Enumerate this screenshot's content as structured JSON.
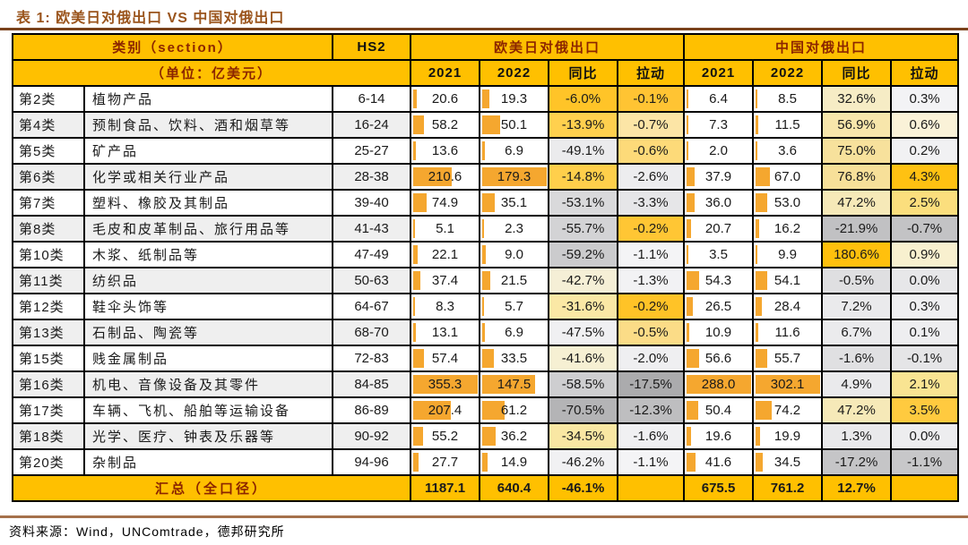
{
  "title": "表 1: 欧美日对俄出口 VS 中国对俄出口",
  "source": "资料来源：Wind，UNComtrade，德邦研究所",
  "header": {
    "section": "类别（section）",
    "unit": "（单位：亿美元）",
    "hs2": "HS2",
    "group_west": "欧美日对俄出口",
    "group_china": "中国对俄出口",
    "sub_2021": "2021",
    "sub_2022": "2022",
    "sub_yoy": "同比",
    "sub_pull": "拉动"
  },
  "colors": {
    "header_bg": "#FFC000",
    "header_text_red": "#8B2500",
    "header_text_dark": "#111111",
    "data_bar": "#F5A72F",
    "band_row": "#EFEFEF",
    "rule_top": "#7A421C",
    "rule_bottom": "#A5714B",
    "title_text": "#9A541C",
    "grid_line": "#000000"
  },
  "maxima": {
    "west_2021": 355.3,
    "west_2022": 179.3,
    "china_2021": 288.0,
    "china_2022": 302.1
  },
  "rows": [
    {
      "cat": "第2类",
      "name": "植物产品",
      "hs2": "6-14",
      "west": {
        "v2021": 20.6,
        "v2022": 19.3,
        "yoy": "-6.0%",
        "pull": "-0.1%",
        "yoy_bg": "#FFC428",
        "pull_bg": "#FFC433"
      },
      "china": {
        "v2021": 6.4,
        "v2022": 8.5,
        "yoy": "32.6%",
        "pull": "0.3%",
        "yoy_bg": "#F6ECC5",
        "pull_bg": "#F3F3F5"
      }
    },
    {
      "cat": "第4类",
      "name": "预制食品、饮料、酒和烟草等",
      "hs2": "16-24",
      "west": {
        "v2021": 58.2,
        "v2022": 50.1,
        "yoy": "-13.9%",
        "pull": "-0.7%",
        "yoy_bg": "#FFD04E",
        "pull_bg": "#FCE5A6"
      },
      "china": {
        "v2021": 7.3,
        "v2022": 11.5,
        "yoy": "56.9%",
        "pull": "0.6%",
        "yoy_bg": "#F7E6AB",
        "pull_bg": "#FAF2D8"
      }
    },
    {
      "cat": "第5类",
      "name": "矿产品",
      "hs2": "25-27",
      "west": {
        "v2021": 13.6,
        "v2022": 6.9,
        "yoy": "-49.1%",
        "pull": "-0.6%",
        "yoy_bg": "#EBEBED",
        "pull_bg": "#FDDA79"
      },
      "china": {
        "v2021": 2.0,
        "v2022": 3.6,
        "yoy": "75.0%",
        "pull": "0.2%",
        "yoy_bg": "#F7E19C",
        "pull_bg": "#F1F1F3"
      }
    },
    {
      "cat": "第6类",
      "name": "化学或相关行业产品",
      "hs2": "28-38",
      "west": {
        "v2021": 210.6,
        "v2022": 179.3,
        "yoy": "-14.8%",
        "pull": "-2.6%",
        "yoy_bg": "#FFCF4B",
        "pull_bg": "#EDEDEF"
      },
      "china": {
        "v2021": 37.9,
        "v2022": 67.0,
        "yoy": "76.8%",
        "pull": "4.3%",
        "yoy_bg": "#F7E099",
        "pull_bg": "#FFC112"
      }
    },
    {
      "cat": "第7类",
      "name": "塑料、橡胶及其制品",
      "hs2": "39-40",
      "west": {
        "v2021": 74.9,
        "v2022": 35.1,
        "yoy": "-53.1%",
        "pull": "-3.3%",
        "yoy_bg": "#D9D9DB",
        "pull_bg": "#E6E6E8"
      },
      "china": {
        "v2021": 36.0,
        "v2022": 53.0,
        "yoy": "47.2%",
        "pull": "2.5%",
        "yoy_bg": "#F6E9B8",
        "pull_bg": "#FBDE7D"
      }
    },
    {
      "cat": "第8类",
      "name": "毛皮和皮革制品、旅行用品等",
      "hs2": "41-43",
      "west": {
        "v2021": 5.1,
        "v2022": 2.3,
        "yoy": "-55.7%",
        "pull": "-0.2%",
        "yoy_bg": "#D3D3D5",
        "pull_bg": "#FFC634"
      },
      "china": {
        "v2021": 20.7,
        "v2022": 16.2,
        "yoy": "-21.9%",
        "pull": "-0.7%",
        "yoy_bg": "#C1C1C3",
        "pull_bg": "#C3C3C5"
      }
    },
    {
      "cat": "第10类",
      "name": "木浆、纸制品等",
      "hs2": "47-49",
      "west": {
        "v2021": 22.1,
        "v2022": 9.0,
        "yoy": "-59.2%",
        "pull": "-1.1%",
        "yoy_bg": "#CBCBCD",
        "pull_bg": "#F4F4F6"
      },
      "china": {
        "v2021": 3.5,
        "v2022": 9.9,
        "yoy": "180.6%",
        "pull": "0.9%",
        "yoy_bg": "#FFC00D",
        "pull_bg": "#F8F0CF"
      }
    },
    {
      "cat": "第11类",
      "name": "纺织品",
      "hs2": "50-63",
      "west": {
        "v2021": 37.4,
        "v2022": 21.5,
        "yoy": "-42.7%",
        "pull": "-1.3%",
        "yoy_bg": "#F5EFD6",
        "pull_bg": "#F2F2F4"
      },
      "china": {
        "v2021": 54.3,
        "v2022": 54.1,
        "yoy": "-0.5%",
        "pull": "0.0%",
        "yoy_bg": "#DFDFE1",
        "pull_bg": "#E7E7E9"
      }
    },
    {
      "cat": "第12类",
      "name": "鞋伞头饰等",
      "hs2": "64-67",
      "west": {
        "v2021": 8.3,
        "v2022": 5.7,
        "yoy": "-31.6%",
        "pull": "-0.2%",
        "yoy_bg": "#FAE8A5",
        "pull_bg": "#FFC327"
      },
      "china": {
        "v2021": 26.5,
        "v2022": 28.4,
        "yoy": "7.2%",
        "pull": "0.3%",
        "yoy_bg": "#EAEAEC",
        "pull_bg": "#EFEFF1"
      }
    },
    {
      "cat": "第13类",
      "name": "石制品、陶瓷等",
      "hs2": "68-70",
      "west": {
        "v2021": 13.1,
        "v2022": 6.9,
        "yoy": "-47.5%",
        "pull": "-0.5%",
        "yoy_bg": "#F0F0F2",
        "pull_bg": "#FBDC87"
      },
      "china": {
        "v2021": 10.9,
        "v2022": 11.6,
        "yoy": "6.7%",
        "pull": "0.1%",
        "yoy_bg": "#EBEBED",
        "pull_bg": "#EEEEF0"
      }
    },
    {
      "cat": "第15类",
      "name": "贱金属制品",
      "hs2": "72-83",
      "west": {
        "v2021": 57.4,
        "v2022": 33.5,
        "yoy": "-41.6%",
        "pull": "-2.0%",
        "yoy_bg": "#F6F0D3",
        "pull_bg": "#EFEFF1"
      },
      "china": {
        "v2021": 56.6,
        "v2022": 55.7,
        "yoy": "-1.6%",
        "pull": "-0.1%",
        "yoy_bg": "#E0E0E2",
        "pull_bg": "#E5E5E7"
      }
    },
    {
      "cat": "第16类",
      "name": "机电、音像设备及其零件",
      "hs2": "84-85",
      "west": {
        "v2021": 355.3,
        "v2022": 147.5,
        "yoy": "-58.5%",
        "pull": "-17.5%",
        "yoy_bg": "#CECED0",
        "pull_bg": "#ABABAD"
      },
      "china": {
        "v2021": 288.0,
        "v2022": 302.1,
        "yoy": "4.9%",
        "pull": "2.1%",
        "yoy_bg": "#EAEAEC",
        "pull_bg": "#F9E492"
      }
    },
    {
      "cat": "第17类",
      "name": "车辆、飞机、船舶等运输设备",
      "hs2": "86-89",
      "west": {
        "v2021": 207.4,
        "v2022": 61.2,
        "yoy": "-70.5%",
        "pull": "-12.3%",
        "yoy_bg": "#B4B4B6",
        "pull_bg": "#BEBEC0"
      },
      "china": {
        "v2021": 50.4,
        "v2022": 74.2,
        "yoy": "47.2%",
        "pull": "3.5%",
        "yoy_bg": "#F6E9B8",
        "pull_bg": "#FFCA3F"
      }
    },
    {
      "cat": "第18类",
      "name": "光学、医疗、钟表及乐器等",
      "hs2": "90-92",
      "west": {
        "v2021": 55.2,
        "v2022": 36.2,
        "yoy": "-34.5%",
        "pull": "-1.6%",
        "yoy_bg": "#F9E7A3",
        "pull_bg": "#F0F0F2"
      },
      "china": {
        "v2021": 19.6,
        "v2022": 19.9,
        "yoy": "1.3%",
        "pull": "0.0%",
        "yoy_bg": "#E9E9EB",
        "pull_bg": "#EDEDEF"
      }
    },
    {
      "cat": "第20类",
      "name": "杂制品",
      "hs2": "94-96",
      "west": {
        "v2021": 27.7,
        "v2022": 14.9,
        "yoy": "-46.2%",
        "pull": "-1.1%",
        "yoy_bg": "#F1F1F3",
        "pull_bg": "#F4F4F6"
      },
      "china": {
        "v2021": 41.6,
        "v2022": 34.5,
        "yoy": "-17.2%",
        "pull": "-1.1%",
        "yoy_bg": "#C5C5C7",
        "pull_bg": "#C7C7C9"
      }
    }
  ],
  "total": {
    "label": "汇总（全口径）",
    "west": {
      "v2021": "1187.1",
      "v2022": "640.4",
      "yoy": "-46.1%",
      "pull": ""
    },
    "china": {
      "v2021": "675.5",
      "v2022": "761.2",
      "yoy": "12.7%",
      "pull": ""
    }
  }
}
